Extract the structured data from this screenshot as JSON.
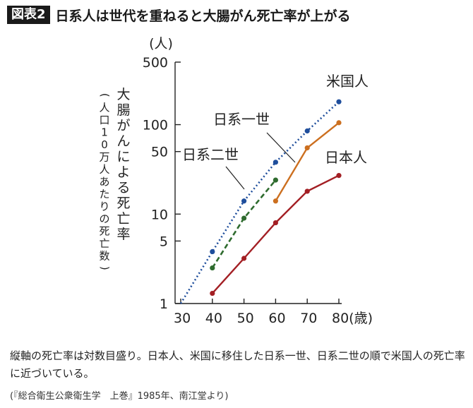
{
  "header": {
    "badge": "図表2",
    "title": "日系人は世代を重ねると大腸がん死亡率が上がる"
  },
  "chart_data": {
    "type": "line",
    "yscale": "log",
    "ylim": [
      1,
      500
    ],
    "xlim": [
      30,
      80
    ],
    "xticks": [
      "30",
      "40",
      "50",
      "60",
      "70",
      "80"
    ],
    "xunit": "(歳)",
    "yticks": [
      "1",
      "5",
      "10",
      "50",
      "100",
      "500"
    ],
    "yunit": "(人)",
    "ylabel_main": "大腸がんによる死亡率",
    "ylabel_sub": "(人口10万人あたりの死亡数)",
    "series": [
      {
        "name": "米国人",
        "style": "dotted",
        "color": "#1f4e9c",
        "points": [
          [
            30,
            1
          ],
          [
            40,
            3.8
          ],
          [
            50,
            14
          ],
          [
            60,
            38
          ],
          [
            70,
            85
          ],
          [
            80,
            180
          ]
        ]
      },
      {
        "name": "日系一世",
        "style": "solid",
        "color": "#cc6f1f",
        "points": [
          [
            60,
            14
          ],
          [
            70,
            55
          ],
          [
            80,
            105
          ]
        ]
      },
      {
        "name": "日系二世",
        "style": "dashed",
        "color": "#2e6b2e",
        "points": [
          [
            40,
            2.5
          ],
          [
            50,
            9
          ],
          [
            60,
            24
          ]
        ]
      },
      {
        "name": "日本人",
        "style": "solid",
        "color": "#a31f24",
        "points": [
          [
            40,
            1.3
          ],
          [
            50,
            3.2
          ],
          [
            60,
            8
          ],
          [
            70,
            18
          ],
          [
            80,
            27
          ]
        ]
      }
    ]
  },
  "caption": {
    "text": "縦軸の死亡率は対数目盛り。日本人、米国に移住した日系一世、日系二世の順で米国人の死亡率に近づいている。",
    "source": "(『総合衛生公衆衛生学　上巻』1985年、南江堂より)"
  }
}
